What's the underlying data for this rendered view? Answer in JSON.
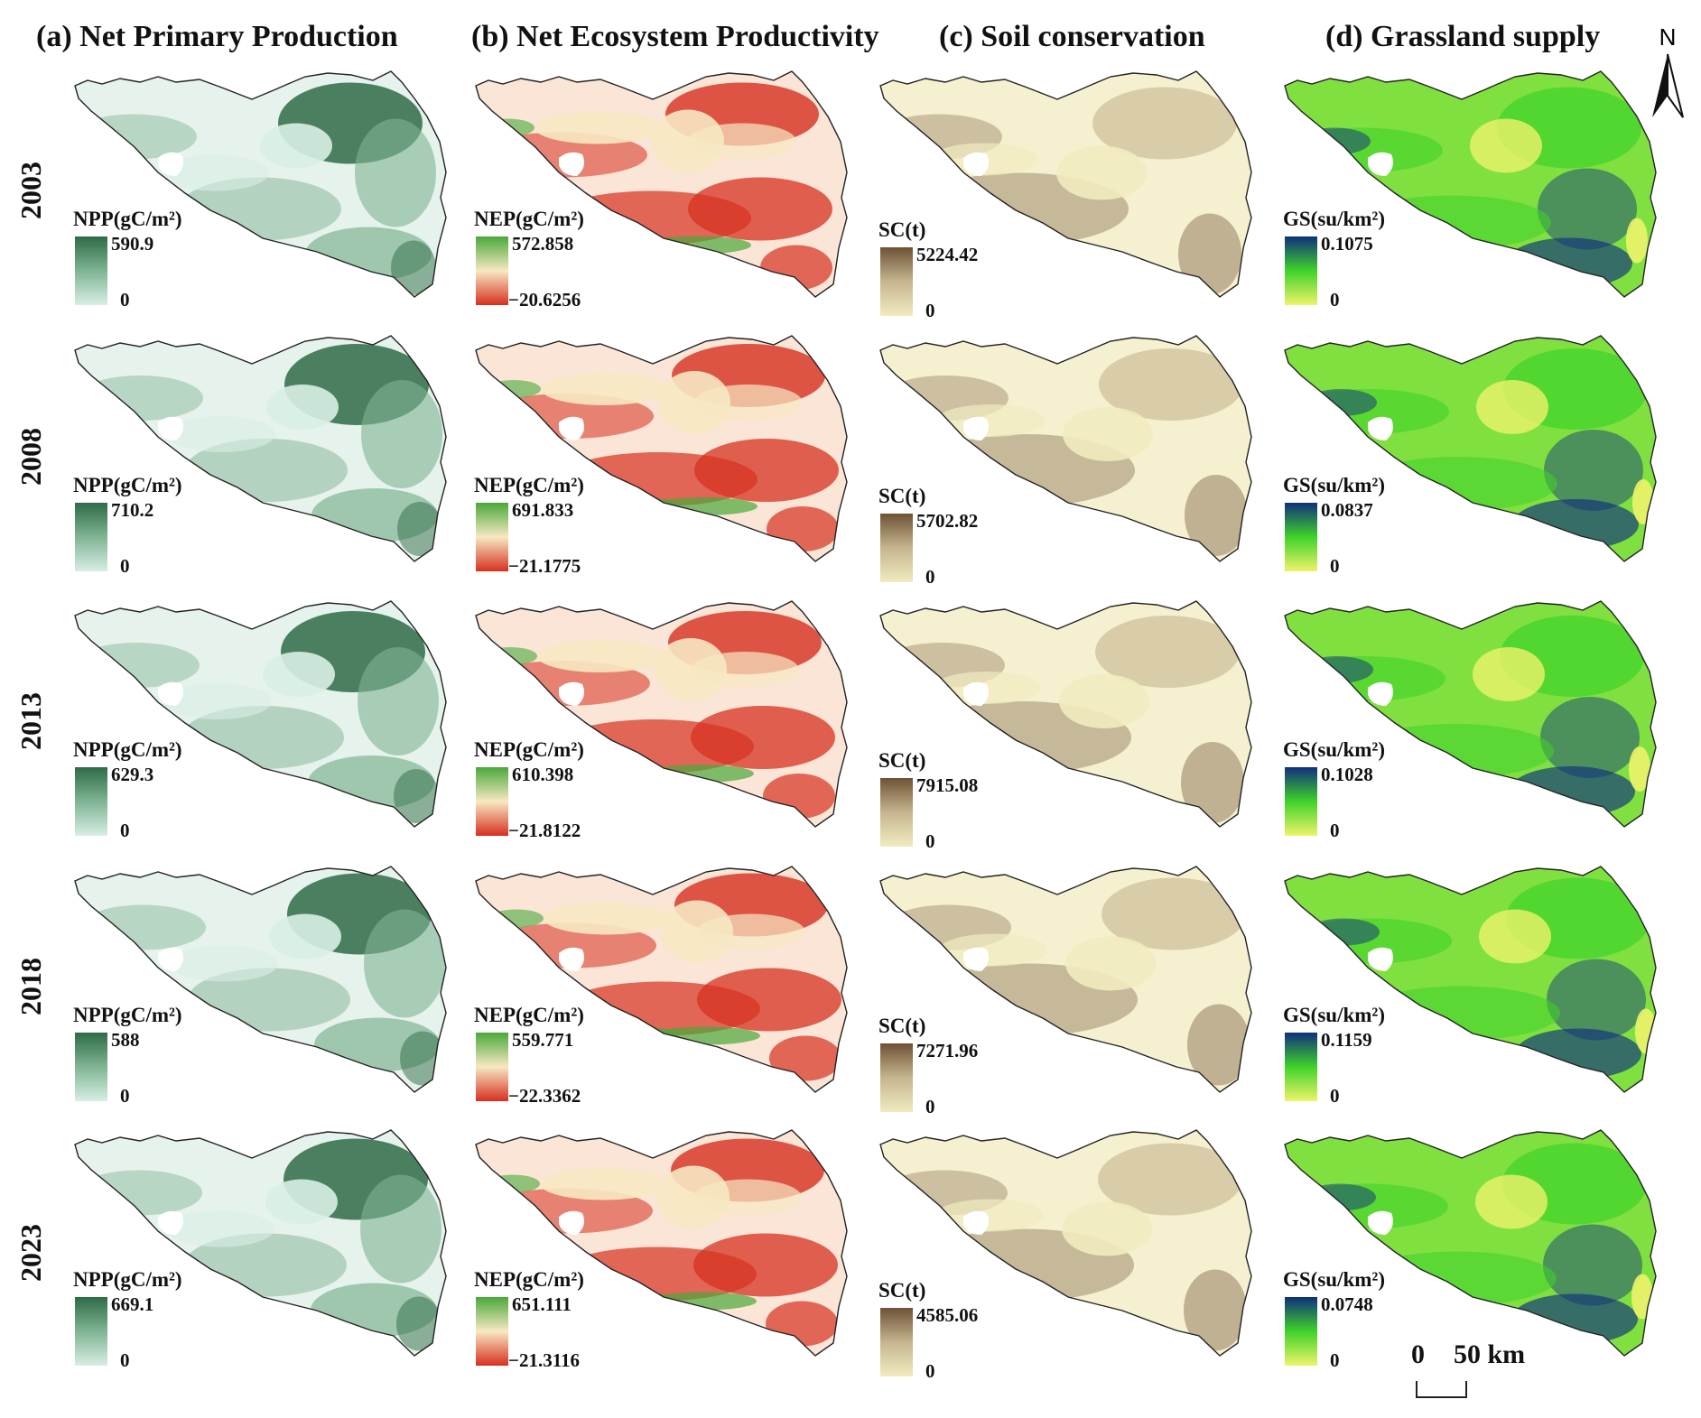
{
  "columns": [
    {
      "title": "(a) Net Primary Production",
      "legend_title": "NPP(gC/m²)",
      "colors": [
        "#d8eee4",
        "#7fb494",
        "#2e6b46"
      ]
    },
    {
      "title": "(b) Net Ecosystem Productivity",
      "legend_title": "NEP(gC/m²)",
      "colors": [
        "#d7301f",
        "#f7e8c3",
        "#4aa83a"
      ]
    },
    {
      "title": "(c) Soil conservation",
      "legend_title": "SC(t)",
      "colors": [
        "#f1ebbf",
        "#c6b58f",
        "#6e5236"
      ]
    },
    {
      "title": "(d) Grassland supply",
      "legend_title": "GS(su/km²)",
      "colors": [
        "#eef36a",
        "#3fd22a",
        "#0f2f7c"
      ]
    }
  ],
  "years": [
    "2003",
    "2008",
    "2013",
    "2018",
    "2023"
  ],
  "legends": {
    "npp": [
      {
        "max": "590.9",
        "min": "0"
      },
      {
        "max": "710.2",
        "min": "0"
      },
      {
        "max": "629.3",
        "min": "0"
      },
      {
        "max": "588",
        "min": "0"
      },
      {
        "max": "669.1",
        "min": "0"
      }
    ],
    "nep": [
      {
        "max": "572.858",
        "min": "−20.6256"
      },
      {
        "max": "691.833",
        "min": "−21.1775"
      },
      {
        "max": "610.398",
        "min": "−21.8122"
      },
      {
        "max": "559.771",
        "min": "−22.3362"
      },
      {
        "max": "651.111",
        "min": "−21.3116"
      }
    ],
    "sc": [
      {
        "max": "5224.42",
        "min": "0"
      },
      {
        "max": "5702.82",
        "min": "0"
      },
      {
        "max": "7915.08",
        "min": "0"
      },
      {
        "max": "7271.96",
        "min": "0"
      },
      {
        "max": "4585.06",
        "min": "0"
      }
    ],
    "gs": [
      {
        "max": "0.1075",
        "min": "0"
      },
      {
        "max": "0.0837",
        "min": "0"
      },
      {
        "max": "0.1028",
        "min": "0"
      },
      {
        "max": "0.1159",
        "min": "0"
      },
      {
        "max": "0.0748",
        "min": "0"
      }
    ]
  },
  "north_arrow": {
    "label": "N"
  },
  "scale_bar": {
    "start": "0",
    "end": "50 km"
  }
}
